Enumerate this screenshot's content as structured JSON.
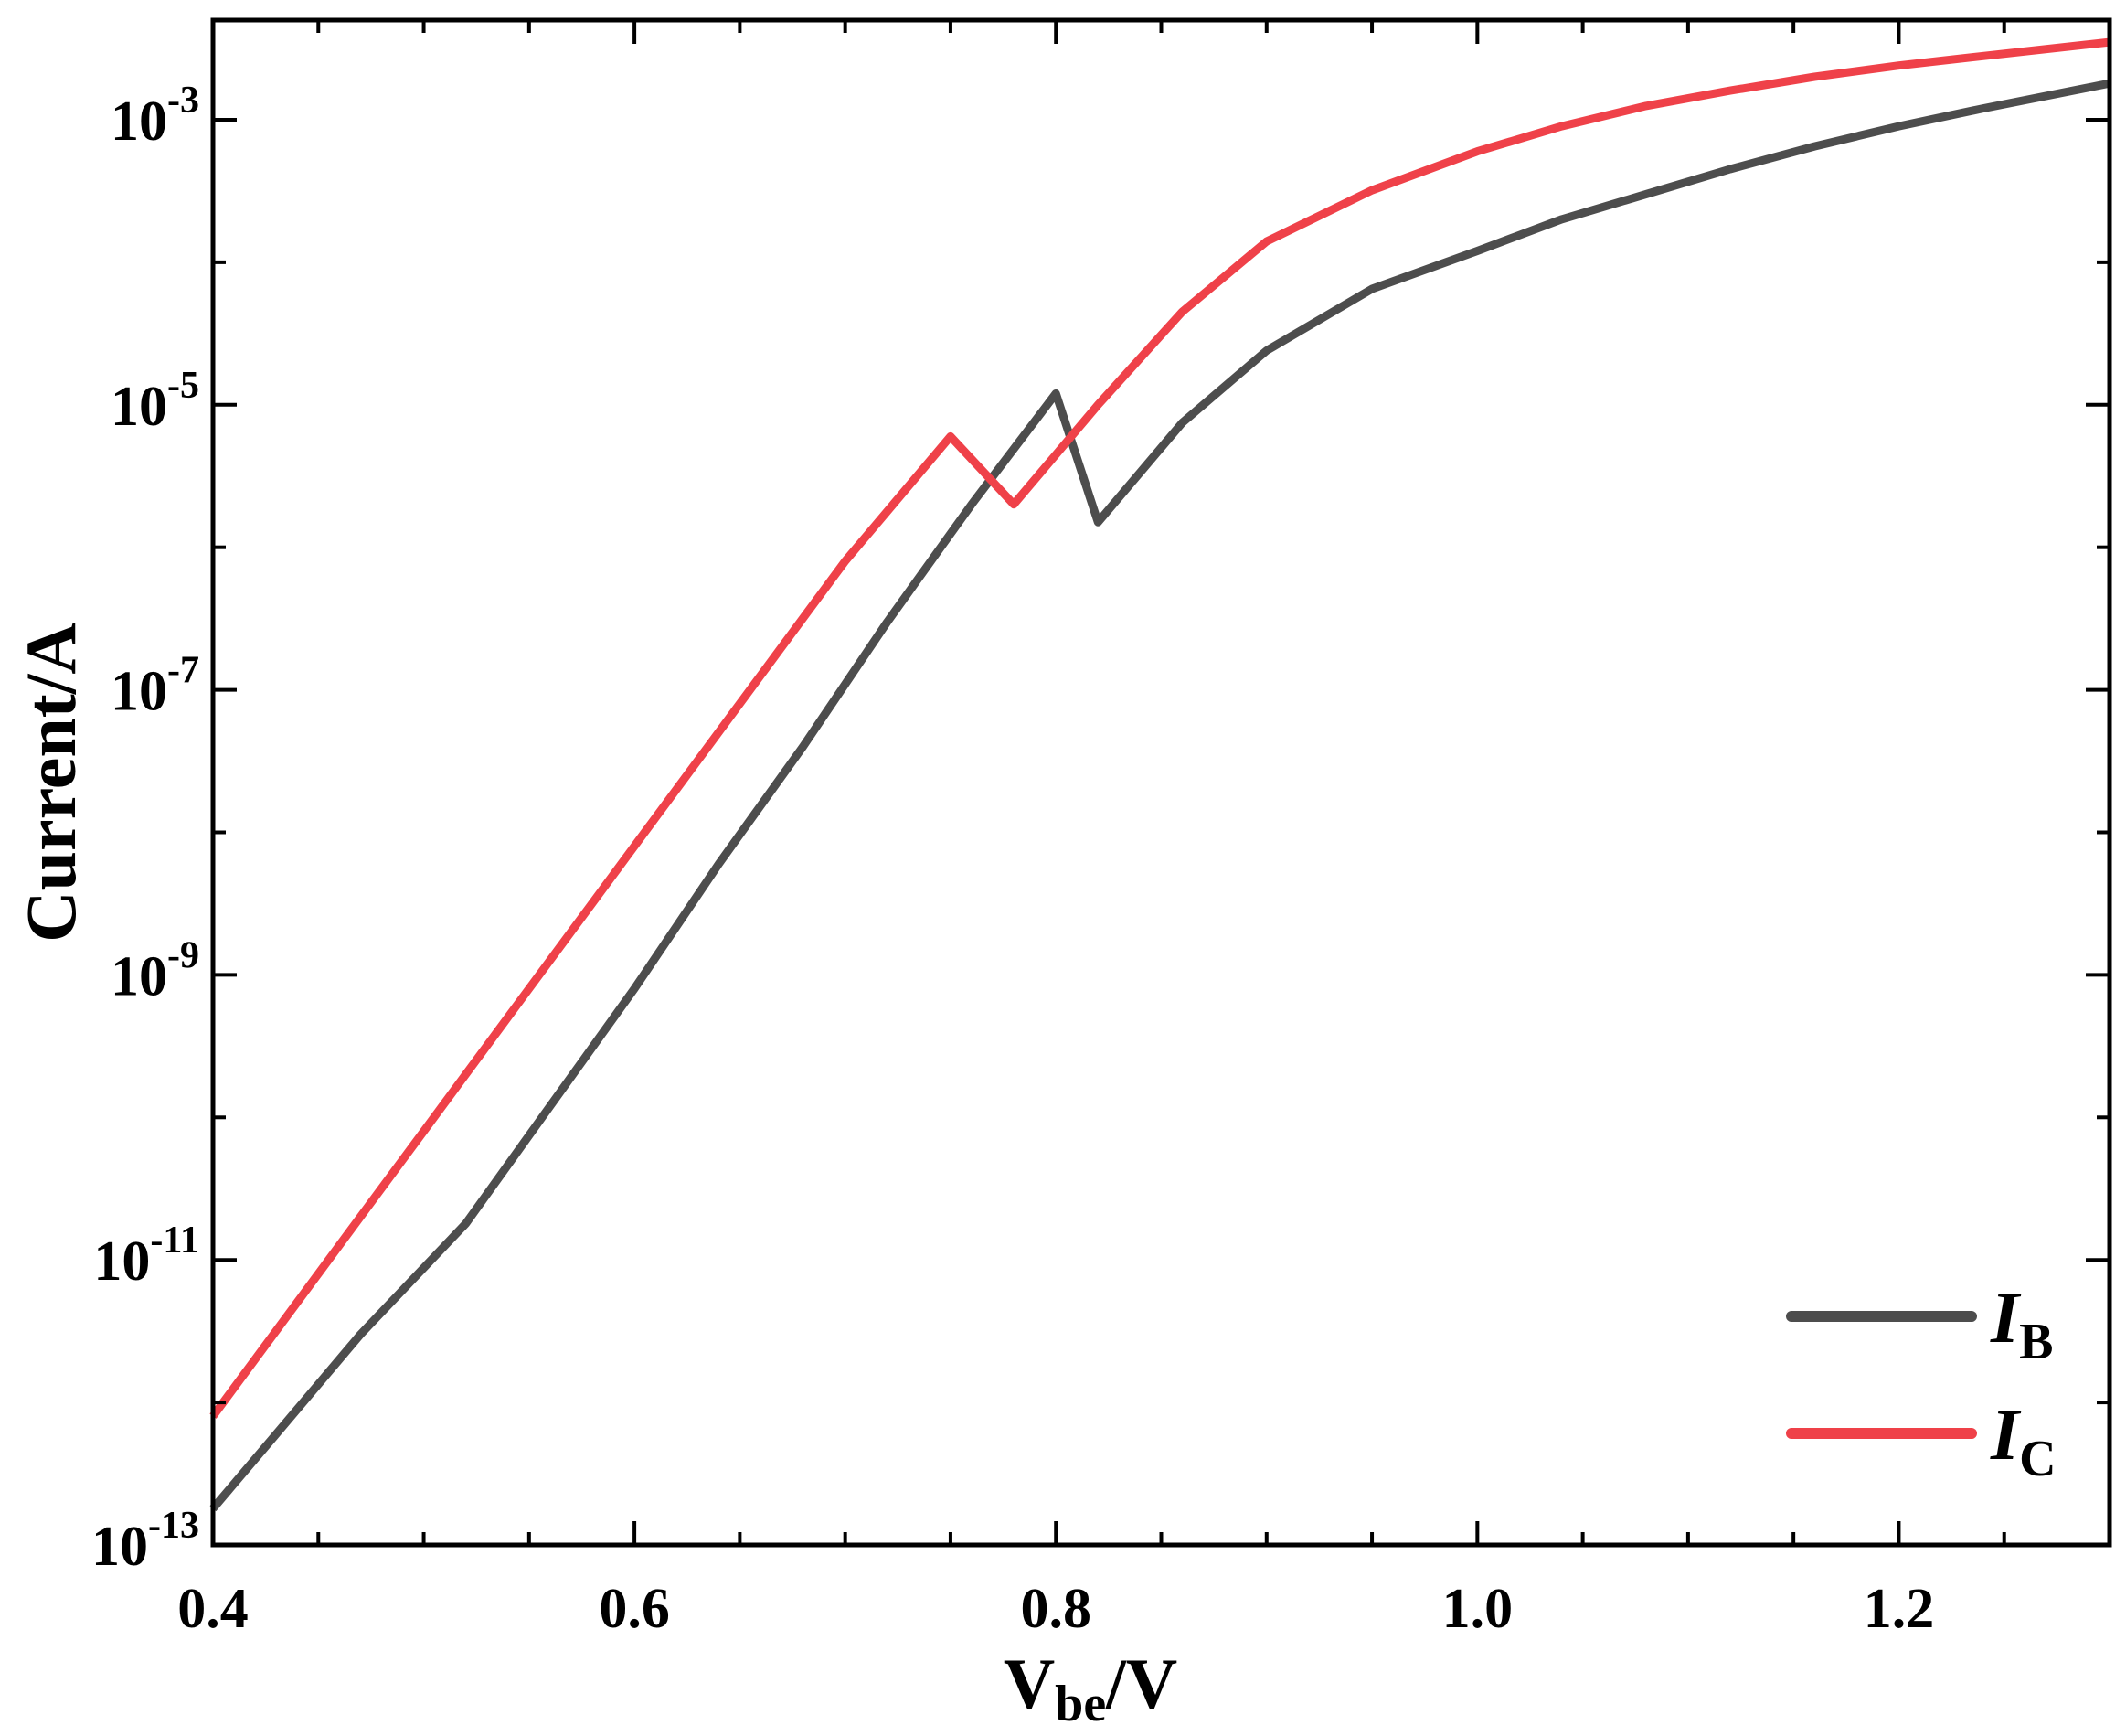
{
  "chart_data": {
    "type": "line",
    "title": "",
    "xlabel": "V",
    "xlabel_sub": "be",
    "xlabel_suffix": "/V",
    "ylabel": "Current/A",
    "xlim": [
      0.4,
      1.3
    ],
    "ylim": [
      1e-13,
      0.005
    ],
    "yscale": "log",
    "grid": false,
    "legend_position": "bottom-right",
    "x_ticks": [
      {
        "value": 0.4,
        "label": "0.4"
      },
      {
        "value": 0.6,
        "label": "0.6"
      },
      {
        "value": 0.8,
        "label": "0.8"
      },
      {
        "value": 1.0,
        "label": "1.0"
      },
      {
        "value": 1.2,
        "label": "1.2"
      }
    ],
    "y_ticks": [
      {
        "value": 1e-13,
        "base": "10",
        "exp": "-13"
      },
      {
        "value": 1e-11,
        "base": "10",
        "exp": "-11"
      },
      {
        "value": 1e-09,
        "base": "10",
        "exp": "-9"
      },
      {
        "value": 1e-07,
        "base": "10",
        "exp": "-7"
      },
      {
        "value": 1e-05,
        "base": "10",
        "exp": "-5"
      },
      {
        "value": 0.001,
        "base": "10",
        "exp": "-3"
      }
    ],
    "series": [
      {
        "name": "I",
        "name_sub": "B",
        "color": "#4d4d4d",
        "x": [
          0.4,
          0.43,
          0.47,
          0.52,
          0.56,
          0.6,
          0.64,
          0.68,
          0.72,
          0.76,
          0.8,
          0.82,
          0.86,
          0.9,
          0.95,
          1.0,
          1.04,
          1.08,
          1.12,
          1.16,
          1.2,
          1.24,
          1.3
        ],
        "y": [
          1.8e-13,
          6e-13,
          3e-12,
          1.8e-11,
          1.2e-10,
          8e-10,
          6e-09,
          4e-08,
          3e-07,
          2e-06,
          1.2e-05,
          1.5e-06,
          7.5e-06,
          2.4e-05,
          6.5e-05,
          0.00012,
          0.0002,
          0.0003,
          0.00045,
          0.00065,
          0.0009,
          0.0012,
          0.0018
        ]
      },
      {
        "name": "I",
        "name_sub": "C",
        "color": "#ef4149",
        "x": [
          0.4,
          0.45,
          0.5,
          0.55,
          0.6,
          0.65,
          0.7,
          0.75,
          0.78,
          0.82,
          0.86,
          0.9,
          0.95,
          1.0,
          1.04,
          1.08,
          1.12,
          1.16,
          1.2,
          1.24,
          1.3
        ],
        "y": [
          8e-13,
          8e-12,
          8e-11,
          8e-10,
          8e-09,
          8e-08,
          8e-07,
          6e-06,
          2e-06,
          1e-05,
          4.5e-05,
          0.00014,
          0.00032,
          0.0006,
          0.0009,
          0.00125,
          0.0016,
          0.002,
          0.0024,
          0.0028,
          0.0035
        ]
      }
    ]
  }
}
